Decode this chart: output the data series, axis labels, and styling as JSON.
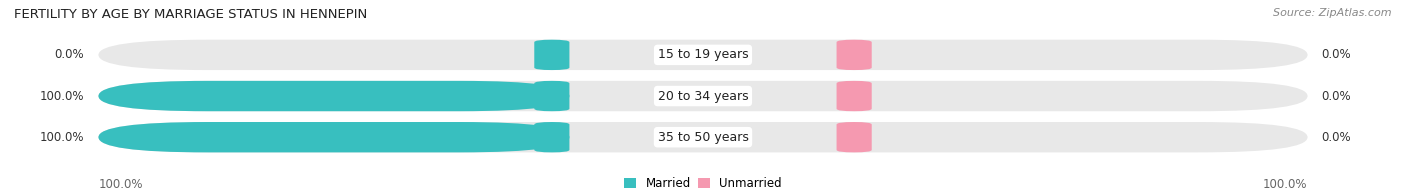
{
  "title": "FERTILITY BY AGE BY MARRIAGE STATUS IN HENNEPIN",
  "source": "Source: ZipAtlas.com",
  "categories": [
    "15 to 19 years",
    "20 to 34 years",
    "35 to 50 years"
  ],
  "married_values": [
    0.0,
    100.0,
    100.0
  ],
  "unmarried_values": [
    0.0,
    0.0,
    0.0
  ],
  "married_color": "#38bfbf",
  "unmarried_color": "#f599b0",
  "bar_bg_color": "#e8e8e8",
  "legend_married": "Married",
  "legend_unmarried": "Unmarried",
  "title_fontsize": 9.5,
  "source_fontsize": 8,
  "bar_label_fontsize": 8.5,
  "category_fontsize": 9,
  "footer_fontsize": 8.5,
  "fig_width": 14.06,
  "fig_height": 1.96,
  "dpi": 100
}
